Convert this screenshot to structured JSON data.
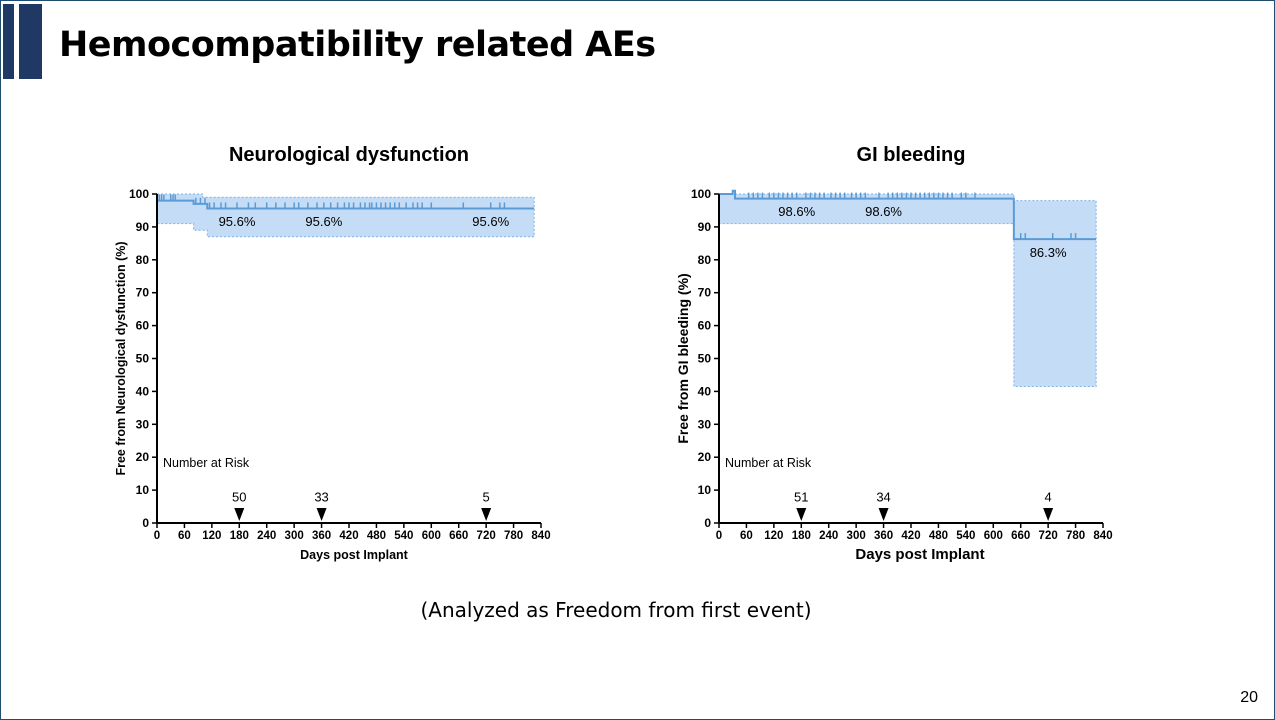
{
  "slide": {
    "title": "Hemocompatibility related AEs",
    "footnote": "(Analyzed as Freedom from first event)",
    "page_number": "20",
    "colors": {
      "accent": "#1f3864",
      "line": "#5b9bd5",
      "band": "#c5dcf6",
      "band_edge": "#7fb2e5"
    }
  },
  "chart_data": [
    {
      "type": "line",
      "title": "Neurological dysfunction",
      "xlabel": "Days post Implant",
      "ylabel": "Free from Neurological dysfunction (%)",
      "xlim": [
        0,
        840
      ],
      "ylim": [
        0,
        100
      ],
      "x_ticks": [
        "0",
        "60",
        "120",
        "180",
        "240",
        "300",
        "360",
        "420",
        "480",
        "540",
        "600",
        "660",
        "720",
        "780",
        "840"
      ],
      "y_ticks": [
        "0",
        "10",
        "20",
        "30",
        "40",
        "50",
        "60",
        "70",
        "80",
        "90",
        "100"
      ],
      "curve": [
        [
          0,
          98
        ],
        [
          80,
          98
        ],
        [
          80,
          97
        ],
        [
          110,
          97
        ],
        [
          110,
          95.6
        ],
        [
          825,
          95.6
        ]
      ],
      "upper_ci": [
        [
          0,
          100
        ],
        [
          100,
          100
        ],
        [
          100,
          99
        ],
        [
          825,
          99
        ]
      ],
      "lower_ci": [
        [
          0,
          91
        ],
        [
          80,
          91
        ],
        [
          80,
          89
        ],
        [
          110,
          89
        ],
        [
          110,
          87
        ],
        [
          825,
          87
        ]
      ],
      "censor_ticks": [
        5,
        10,
        15,
        30,
        35,
        40,
        85,
        95,
        105,
        115,
        125,
        140,
        150,
        175,
        200,
        215,
        240,
        260,
        280,
        300,
        310,
        330,
        350,
        365,
        380,
        395,
        410,
        420,
        430,
        445,
        455,
        465,
        470,
        480,
        490,
        500,
        510,
        520,
        530,
        545,
        560,
        570,
        580,
        600,
        670,
        730,
        750,
        760
      ],
      "annotations": [
        {
          "x": 175,
          "y": 91.5,
          "label": "95.6%"
        },
        {
          "x": 365,
          "y": 91.5,
          "label": "95.6%"
        },
        {
          "x": 730,
          "y": 91.5,
          "label": "95.6%"
        }
      ],
      "risk_label": "Number at Risk",
      "number_at_risk": [
        {
          "day": 180,
          "count": "50"
        },
        {
          "day": 360,
          "count": "33"
        },
        {
          "day": 720,
          "count": "5"
        }
      ]
    },
    {
      "type": "line",
      "title": "GI bleeding",
      "xlabel": "Days post Implant",
      "ylabel": "Free from GI bleeding (%)",
      "xlim": [
        0,
        840
      ],
      "ylim": [
        0,
        100
      ],
      "x_ticks": [
        "0",
        "60",
        "120",
        "180",
        "240",
        "300",
        "360",
        "420",
        "480",
        "540",
        "600",
        "660",
        "720",
        "780",
        "840"
      ],
      "y_ticks": [
        "0",
        "10",
        "20",
        "30",
        "40",
        "50",
        "60",
        "70",
        "80",
        "90",
        "100"
      ],
      "curve": [
        [
          0,
          100
        ],
        [
          30,
          100
        ],
        [
          30,
          101
        ],
        [
          35,
          101
        ],
        [
          35,
          98.6
        ],
        [
          645,
          98.6
        ],
        [
          645,
          86.3
        ],
        [
          825,
          86.3
        ]
      ],
      "upper_ci": [
        [
          0,
          100
        ],
        [
          645,
          100
        ],
        [
          645,
          98
        ],
        [
          825,
          98
        ]
      ],
      "lower_ci": [
        [
          0,
          91
        ],
        [
          645,
          91
        ],
        [
          645,
          41.5
        ],
        [
          825,
          41.5
        ]
      ],
      "censor_ticks": [
        65,
        75,
        85,
        95,
        110,
        120,
        130,
        140,
        150,
        160,
        170,
        190,
        200,
        210,
        220,
        230,
        245,
        255,
        265,
        275,
        290,
        300,
        310,
        320,
        350,
        370,
        380,
        390,
        400,
        410,
        420,
        430,
        440,
        450,
        460,
        470,
        480,
        490,
        500,
        510,
        530,
        540,
        560,
        660,
        670,
        730,
        770,
        780
      ],
      "annotations": [
        {
          "x": 170,
          "y": 94.5,
          "label": "98.6%"
        },
        {
          "x": 360,
          "y": 94.5,
          "label": "98.6%"
        },
        {
          "x": 720,
          "y": 82,
          "label": "86.3%"
        }
      ],
      "risk_label": "Number at Risk",
      "number_at_risk": [
        {
          "day": 180,
          "count": "51"
        },
        {
          "day": 360,
          "count": "34"
        },
        {
          "day": 720,
          "count": "4"
        }
      ]
    }
  ]
}
